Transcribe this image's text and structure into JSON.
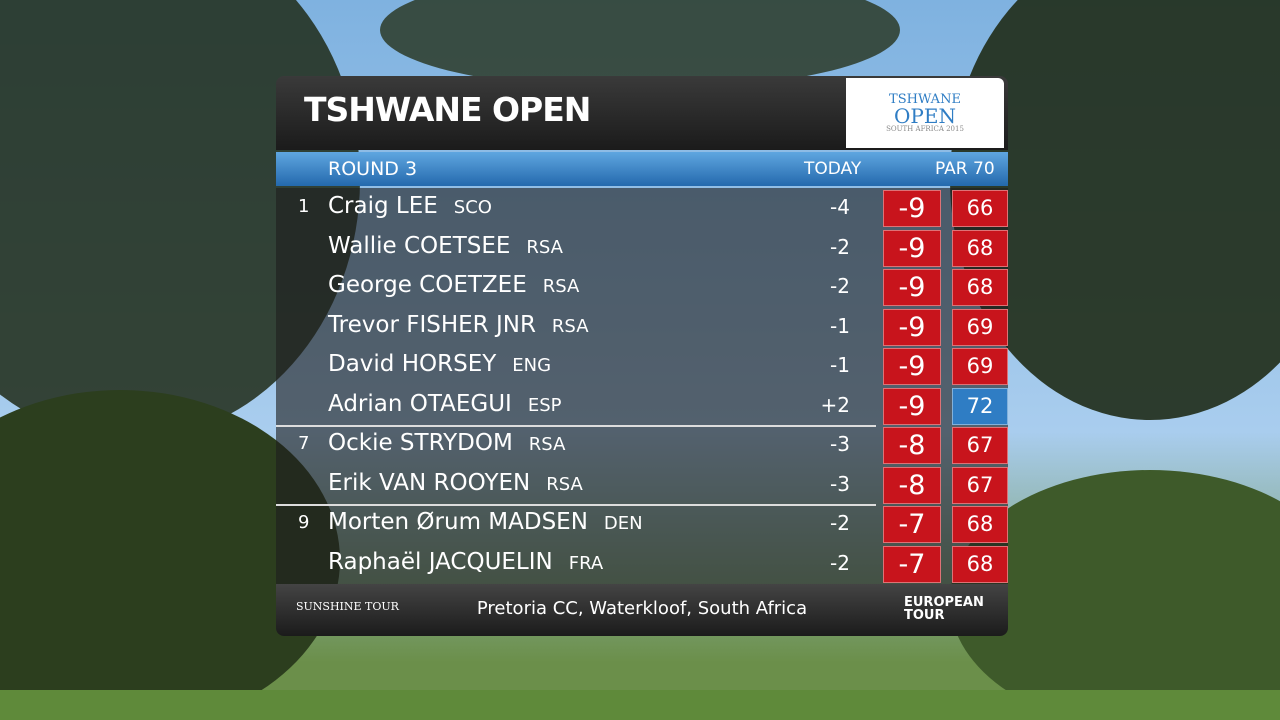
{
  "header": {
    "title": "TSHWANE OPEN",
    "logo": {
      "line1": "TSHWANE",
      "line2": "OPEN",
      "line3": "SOUTH AFRICA 2015"
    }
  },
  "round_bar": {
    "round": "ROUND 3",
    "today": "TODAY",
    "par": "PAR 70"
  },
  "rows": [
    {
      "position": "1",
      "name": "Craig LEE",
      "country": "SCO",
      "today": "-4",
      "total": "-9",
      "round": 66,
      "round_color": "#c8141c"
    },
    {
      "name": "Wallie COETSEE",
      "country": "RSA",
      "today": "-2",
      "total": "-9",
      "round": 68,
      "round_color": "#c8141c"
    },
    {
      "name": "George COETZEE",
      "country": "RSA",
      "today": "-2",
      "total": "-9",
      "round": 68,
      "round_color": "#c8141c"
    },
    {
      "name": "Trevor FISHER JNR",
      "country": "RSA",
      "today": "-1",
      "total": "-9",
      "round": 69,
      "round_color": "#c8141c"
    },
    {
      "name": "David HORSEY",
      "country": "ENG",
      "today": "-1",
      "total": "-9",
      "round": 69,
      "round_color": "#c8141c"
    },
    {
      "name": "Adrian OTAEGUI",
      "country": "ESP",
      "today": "+2",
      "total": "-9",
      "round": 72,
      "round_color": "#2f7dc4"
    },
    {
      "position": "7",
      "name": "Ockie STRYDOM",
      "country": "RSA",
      "today": "-3",
      "total": "-8",
      "round": 67,
      "round_color": "#c8141c"
    },
    {
      "name": "Erik VAN ROOYEN",
      "country": "RSA",
      "today": "-3",
      "total": "-8",
      "round": 67,
      "round_color": "#c8141c"
    },
    {
      "position": "9",
      "name": "Morten Ørum MADSEN",
      "country": "DEN",
      "today": "-2",
      "total": "-7",
      "round": 68,
      "round_color": "#c8141c"
    },
    {
      "name": "Raphaël JACQUELIN",
      "country": "FRA",
      "today": "-2",
      "total": "-7",
      "round": 68,
      "round_color": "#c8141c"
    }
  ],
  "footer": {
    "left_logo": "SUNSHINE TOUR",
    "venue": "Pretoria CC, Waterkloof, South Africa",
    "right_logo": "EUROPEAN TOUR"
  }
}
